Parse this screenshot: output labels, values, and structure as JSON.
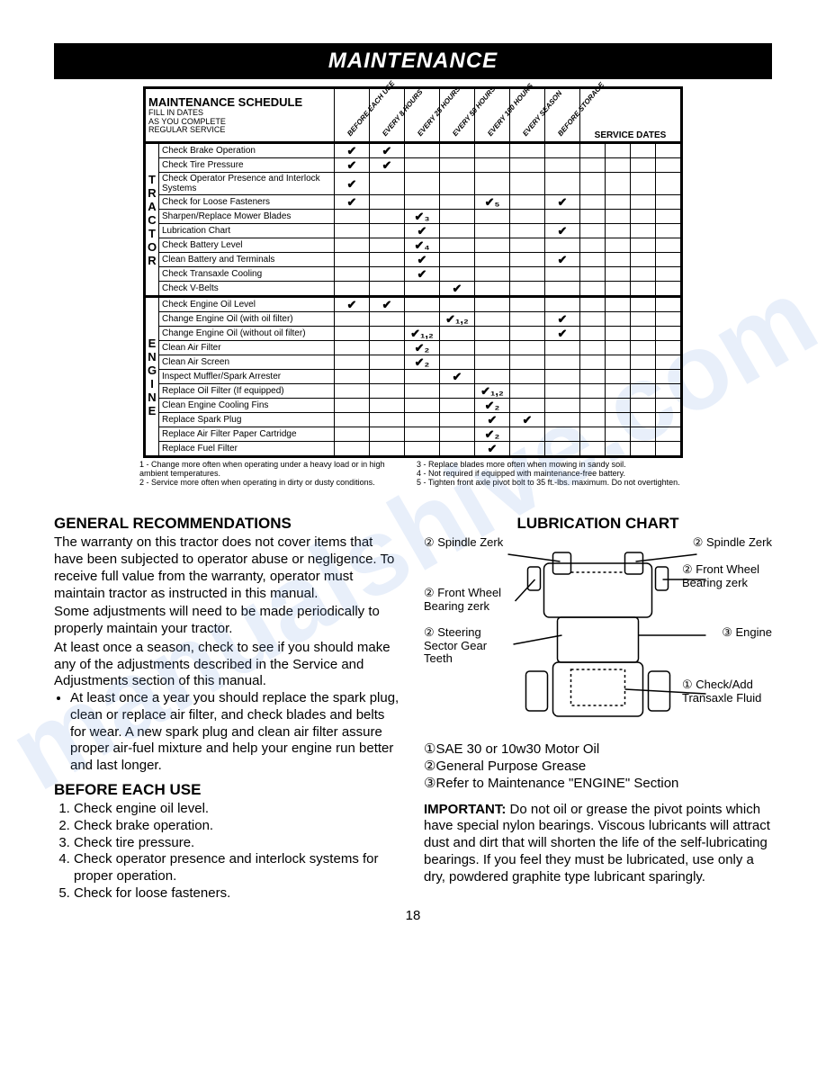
{
  "title": "MAINTENANCE",
  "watermark": "manualshive.com",
  "schedule": {
    "header_title": "MAINTENANCE SCHEDULE",
    "header_sub": "FILL IN DATES\nAS YOU COMPLETE\nREGULAR SERVICE",
    "period_cols": [
      "BEFORE EACH USE",
      "EVERY 8 HOURS",
      "EVERY 25 HOURS",
      "EVERY 50 HOURS",
      "EVERY 100 HOURS",
      "EVERY SEASON",
      "BEFORE STORAGE"
    ],
    "service_dates": "SERVICE DATES",
    "groups": [
      {
        "side": "TRACTOR",
        "rows": [
          {
            "task": "Check Brake Operation",
            "marks": [
              "✔",
              "✔",
              "",
              "",
              "",
              "",
              ""
            ]
          },
          {
            "task": "Check Tire Pressure",
            "marks": [
              "✔",
              "✔",
              "",
              "",
              "",
              "",
              ""
            ]
          },
          {
            "task": "Check Operator Presence and Interlock Systems",
            "marks": [
              "✔",
              "",
              "",
              "",
              "",
              "",
              ""
            ]
          },
          {
            "task": "Check for Loose Fasteners",
            "marks": [
              "✔",
              "",
              "",
              "",
              "✔₅",
              "",
              "✔"
            ]
          },
          {
            "task": "Sharpen/Replace Mower Blades",
            "marks": [
              "",
              "",
              "✔₃",
              "",
              "",
              "",
              ""
            ]
          },
          {
            "task": "Lubrication Chart",
            "marks": [
              "",
              "",
              "✔",
              "",
              "",
              "",
              "✔"
            ]
          },
          {
            "task": "Check Battery Level",
            "marks": [
              "",
              "",
              "✔₄",
              "",
              "",
              "",
              ""
            ]
          },
          {
            "task": "Clean Battery and Terminals",
            "marks": [
              "",
              "",
              "✔",
              "",
              "",
              "",
              "✔"
            ]
          },
          {
            "task": "Check Transaxle Cooling",
            "marks": [
              "",
              "",
              "✔",
              "",
              "",
              "",
              ""
            ]
          },
          {
            "task": "Check V-Belts",
            "marks": [
              "",
              "",
              "",
              "✔",
              "",
              "",
              ""
            ]
          }
        ]
      },
      {
        "side": "ENGINE",
        "rows": [
          {
            "task": "Check Engine Oil Level",
            "marks": [
              "✔",
              "✔",
              "",
              "",
              "",
              "",
              ""
            ]
          },
          {
            "task": "Change Engine Oil (with oil filter)",
            "marks": [
              "",
              "",
              "",
              "✔₁,₂",
              "",
              "",
              "✔"
            ]
          },
          {
            "task": "Change Engine Oil (without oil filter)",
            "marks": [
              "",
              "",
              "✔₁,₂",
              "",
              "",
              "",
              "✔"
            ]
          },
          {
            "task": "Clean Air Filter",
            "marks": [
              "",
              "",
              "✔₂",
              "",
              "",
              "",
              ""
            ]
          },
          {
            "task": "Clean Air Screen",
            "marks": [
              "",
              "",
              "✔₂",
              "",
              "",
              "",
              ""
            ]
          },
          {
            "task": "Inspect Muffler/Spark Arrester",
            "marks": [
              "",
              "",
              "",
              "✔",
              "",
              "",
              ""
            ]
          },
          {
            "task": "Replace Oil Filter (If equipped)",
            "marks": [
              "",
              "",
              "",
              "",
              "✔₁,₂",
              "",
              ""
            ]
          },
          {
            "task": "Clean Engine Cooling Fins",
            "marks": [
              "",
              "",
              "",
              "",
              "✔₂",
              "",
              ""
            ]
          },
          {
            "task": "Replace Spark Plug",
            "marks": [
              "",
              "",
              "",
              "",
              "✔",
              "✔",
              ""
            ]
          },
          {
            "task": "Replace Air Filter Paper Cartridge",
            "marks": [
              "",
              "",
              "",
              "",
              "✔₂",
              "",
              ""
            ]
          },
          {
            "task": "Replace Fuel Filter",
            "marks": [
              "",
              "",
              "",
              "",
              "✔",
              "",
              ""
            ]
          }
        ]
      }
    ]
  },
  "footnotes": {
    "left": "1 - Change more often when operating under a heavy load or in high ambient temperatures.\n2 - Service more often when operating in dirty or dusty conditions.",
    "right": "3 - Replace blades more often when mowing in sandy soil.\n4 - Not required if equipped with maintenance-free battery.\n5 - Tighten front axle pivot bolt to 35 ft.-lbs. maximum. Do not overtighten."
  },
  "left_col": {
    "h_general": "GENERAL RECOMMENDATIONS",
    "p1": "The warranty on this tractor does not cover items that have been subjected to operator abuse or negligence. To receive full value from the warranty, operator must maintain tractor as instructed in this manual.",
    "p2": "Some adjustments will need to be made periodically to properly maintain your tractor.",
    "p3": "At least once a season, check to see if you should make any of the adjustments described in the Service and Adjustments section of this manual.",
    "bullet1": "At least once a year you should replace the spark plug, clean or replace air filter, and check blades and belts for wear. A new spark plug and clean air filter assure proper air-fuel mixture and help your engine run better and last longer.",
    "h_before": "BEFORE EACH USE",
    "ol": [
      "Check engine oil level.",
      "Check brake operation.",
      "Check tire pressure.",
      "Check operator presence and interlock systems for proper operation.",
      "Check for loose fasteners."
    ]
  },
  "right_col": {
    "h_lub": "LUBRICATION CHART",
    "labels": {
      "spindle_l": "② Spindle Zerk",
      "spindle_r": "② Spindle Zerk",
      "fwb_l": "② Front Wheel Bearing zerk",
      "fwb_r": "② Front Wheel Bearing zerk",
      "steering": "② Steering Sector Gear Teeth",
      "engine": "③ Engine",
      "trans": "① Check/Add Transaxle Fluid"
    },
    "legend1": "①SAE 30 or 10w30 Motor Oil",
    "legend2": "②General Purpose Grease",
    "legend3": "③Refer to Maintenance \"ENGINE\" Section",
    "important_label": "IMPORTANT:",
    "important": "  Do not oil or grease the pivot points which have special nylon bearings. Viscous lubricants will attract dust and dirt that will shorten the life of the self-lubricating bearings. If you feel they must be lubricated, use only a dry, powdered graphite type lubricant sparingly."
  },
  "page_number": "18"
}
